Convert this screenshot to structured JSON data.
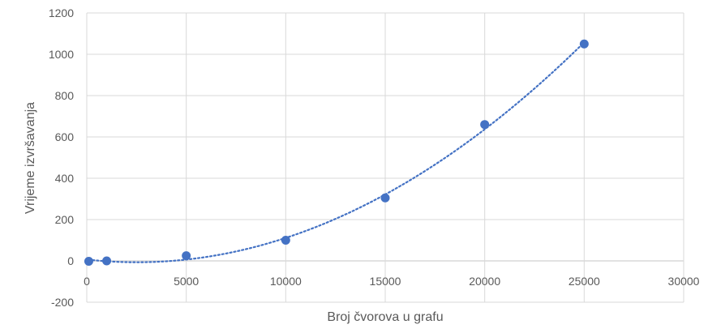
{
  "chart_data": {
    "type": "scatter",
    "title": "",
    "xlabel": "Broj čvorova u grafu",
    "ylabel": "Vrijeme izvršavanja",
    "xlim": [
      0,
      30000
    ],
    "ylim": [
      -200,
      1200
    ],
    "x_ticks": [
      0,
      5000,
      10000,
      15000,
      20000,
      25000,
      30000
    ],
    "y_ticks": [
      -200,
      0,
      200,
      400,
      600,
      800,
      1000,
      1200
    ],
    "grid": true,
    "legend": "none",
    "series": [
      {
        "x": [
          100,
          1000,
          5000,
          10000,
          15000,
          20000,
          25000
        ],
        "y": [
          -2,
          0,
          25,
          100,
          305,
          660,
          1050
        ],
        "marker": "circle",
        "trendline": "polynomial (dotted)"
      }
    ],
    "colors": {
      "marker": "#4472C4",
      "trendline": "#4472C4",
      "grid": "#d9d9d9",
      "tick_text": "#595959"
    }
  }
}
